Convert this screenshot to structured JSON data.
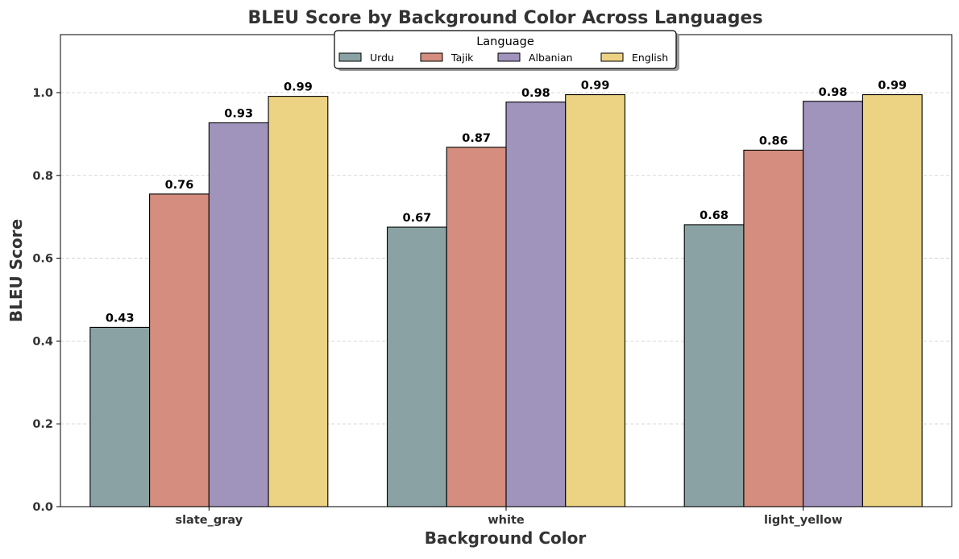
{
  "chart_data": {
    "type": "bar",
    "title": "BLEU Score by Background Color Across Languages",
    "xlabel": "Background Color",
    "ylabel": "BLEU Score",
    "categories": [
      "slate_gray",
      "white",
      "light_yellow"
    ],
    "ylim": [
      0,
      1.14
    ],
    "yticks": [
      0.0,
      0.2,
      0.4,
      0.6,
      0.8,
      1.0
    ],
    "grid": "y-dashed",
    "legend": {
      "title": "Language",
      "placement": "top-center"
    },
    "series": [
      {
        "name": "Urdu",
        "color": "#8aa2a4",
        "values": [
          0.433,
          0.675,
          0.681
        ],
        "labels": [
          "0.43",
          "0.67",
          "0.68"
        ]
      },
      {
        "name": "Tajik",
        "color": "#d48d7e",
        "values": [
          0.755,
          0.868,
          0.861
        ],
        "labels": [
          "0.76",
          "0.87",
          "0.86"
        ]
      },
      {
        "name": "Albanian",
        "color": "#a094bd",
        "values": [
          0.927,
          0.977,
          0.979
        ],
        "labels": [
          "0.93",
          "0.98",
          "0.98"
        ]
      },
      {
        "name": "English",
        "color": "#ecd283",
        "values": [
          0.991,
          0.995,
          0.995
        ],
        "labels": [
          "0.99",
          "0.99",
          "0.99"
        ]
      }
    ]
  }
}
